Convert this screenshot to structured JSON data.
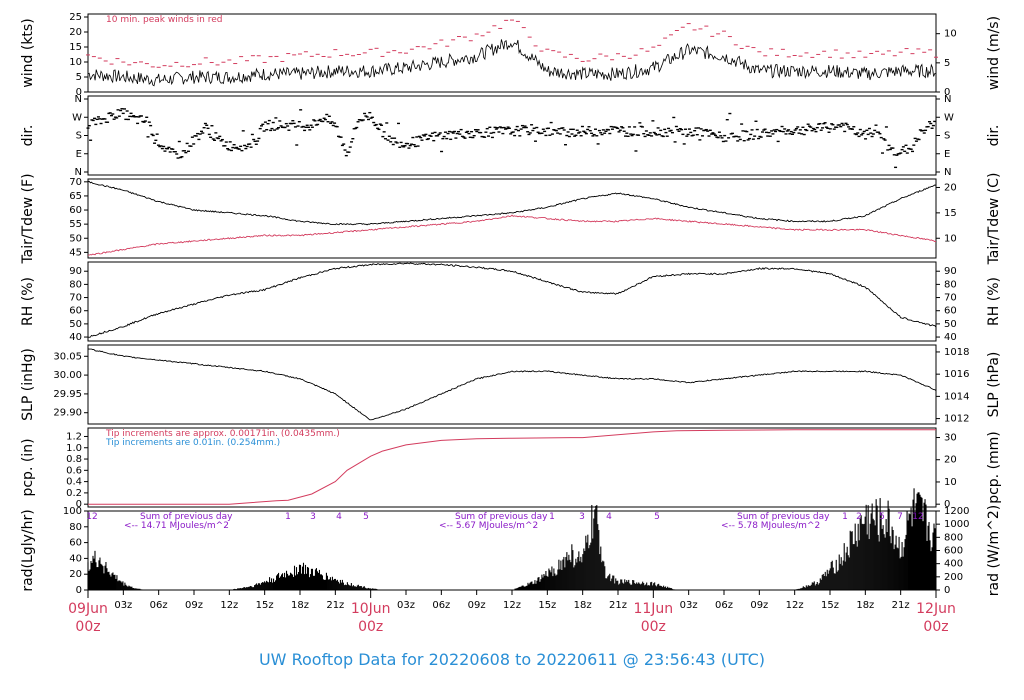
{
  "colors": {
    "red": "#d33c5e",
    "blue": "#2a8fd6",
    "purple": "#8a1ac7",
    "black": "#000000"
  },
  "footer": "UW Rooftop Data for 20220608  to  20220611 @ 23:56:43  (UTC)",
  "x_ticks": [
    "03z",
    "06z",
    "09z",
    "12z",
    "15z",
    "18z",
    "21z",
    "03z",
    "06z",
    "09z",
    "12z",
    "15z",
    "18z",
    "21z",
    "03z",
    "06z",
    "09z",
    "12z",
    "15z",
    "18z",
    "21z"
  ],
  "date_labels": [
    {
      "date": "09Jun",
      "time": "00z"
    },
    {
      "date": "10Jun",
      "time": "00z"
    },
    {
      "date": "11Jun",
      "time": "00z"
    },
    {
      "date": "12Jun",
      "time": "00z"
    }
  ],
  "chart_data": [
    {
      "type": "line",
      "ylabel": "wind (kts)",
      "ylabel_right": "wind (m/s)",
      "ylim": [
        0,
        26
      ],
      "yticks": [
        "0",
        "5",
        "10",
        "15",
        "20",
        "25"
      ],
      "right_ticks": [
        "0",
        "5",
        "10"
      ],
      "annotation": "10 min. peak winds in red",
      "x_hours": [
        0,
        3,
        6,
        9,
        12,
        15,
        18,
        21,
        24,
        27,
        30,
        33,
        36,
        39,
        42,
        45,
        48,
        51,
        54,
        57,
        60,
        63,
        66,
        69,
        72
      ],
      "series": [
        {
          "values": [
            6,
            5,
            4,
            5,
            5,
            6,
            6,
            7,
            7,
            8,
            10,
            12,
            17,
            7,
            6,
            6,
            8,
            14,
            12,
            7,
            7,
            7,
            6,
            7,
            7
          ]
        },
        {
          "name": "10 min. peak winds",
          "values": [
            12,
            10,
            9,
            10,
            10,
            11,
            12,
            13,
            13,
            14,
            16,
            19,
            24,
            13,
            11,
            12,
            14,
            22,
            19,
            13,
            13,
            13,
            12,
            13,
            13
          ]
        }
      ]
    },
    {
      "type": "scatter",
      "ylabel": "dir.",
      "ylabel_right": "dir.",
      "yticks": [
        "N",
        "E",
        "S",
        "W",
        "N"
      ],
      "x_hours": [
        0,
        1,
        2,
        3,
        4,
        5,
        6,
        7,
        8,
        9,
        10,
        11,
        12,
        13,
        14,
        15,
        16,
        17,
        18,
        19,
        20,
        21,
        22,
        23,
        24,
        25,
        26,
        27,
        28,
        29,
        30,
        31,
        32,
        33,
        34,
        35,
        36,
        37,
        38,
        39,
        40,
        41,
        42,
        43,
        44,
        45,
        46,
        47,
        48,
        49,
        50,
        51,
        52,
        53,
        54,
        55,
        56,
        57,
        58,
        59,
        60,
        61,
        62,
        63,
        64,
        65,
        66,
        67,
        68,
        69,
        70,
        71,
        72
      ],
      "values_deg": [
        240,
        250,
        280,
        290,
        260,
        250,
        150,
        90,
        90,
        160,
        220,
        160,
        130,
        130,
        130,
        230,
        230,
        230,
        230,
        230,
        270,
        230,
        90,
        260,
        280,
        200,
        150,
        140,
        150,
        170,
        180,
        185,
        190,
        195,
        195,
        200,
        200,
        205,
        210,
        200,
        195,
        200,
        200,
        200,
        210,
        205,
        200,
        200,
        200,
        200,
        200,
        195,
        200,
        180,
        170,
        175,
        180,
        190,
        195,
        200,
        205,
        210,
        215,
        220,
        230,
        200,
        180,
        210,
        110,
        100,
        120,
        220,
        230
      ]
    },
    {
      "type": "line",
      "ylabel": "Tair/Tdew (F)",
      "ylabel_right": "Tair/Tdew (C)",
      "ylim": [
        43,
        71
      ],
      "yticks": [
        "45",
        "50",
        "55",
        "60",
        "65",
        "70"
      ],
      "right_ticks": [
        "10",
        "15",
        "20"
      ],
      "x_hours": [
        0,
        3,
        6,
        9,
        12,
        15,
        18,
        21,
        24,
        27,
        30,
        33,
        36,
        39,
        42,
        45,
        48,
        51,
        54,
        57,
        60,
        63,
        66,
        69,
        72
      ],
      "series": [
        {
          "name": "Tair",
          "values": [
            70,
            67,
            63,
            60,
            59,
            58,
            56,
            55,
            55,
            56,
            57,
            58,
            59,
            61,
            64,
            66,
            64,
            61,
            59,
            57,
            56,
            56,
            58,
            64,
            69
          ]
        },
        {
          "name": "Tdew",
          "values": [
            44,
            46,
            48,
            49,
            50,
            51,
            51,
            52,
            53,
            54,
            55,
            56,
            58,
            57,
            56,
            56,
            57,
            56,
            55,
            54,
            53,
            53,
            53,
            51,
            49
          ]
        }
      ]
    },
    {
      "type": "line",
      "ylabel": "RH (%)",
      "ylabel_right": "RH (%)",
      "ylim": [
        37,
        97
      ],
      "yticks": [
        "40",
        "50",
        "60",
        "70",
        "80",
        "90"
      ],
      "right_ticks": [
        "40",
        "50",
        "60",
        "70",
        "80",
        "90"
      ],
      "x_hours": [
        0,
        3,
        6,
        9,
        12,
        15,
        18,
        21,
        24,
        27,
        30,
        33,
        36,
        39,
        42,
        45,
        48,
        51,
        54,
        57,
        60,
        63,
        66,
        69,
        72
      ],
      "series": [
        {
          "values": [
            40,
            48,
            58,
            65,
            72,
            76,
            85,
            92,
            95,
            96,
            95,
            93,
            90,
            82,
            74,
            73,
            86,
            88,
            88,
            92,
            92,
            88,
            78,
            55,
            48
          ]
        }
      ]
    },
    {
      "type": "line",
      "ylabel": "SLP (inHg)",
      "ylabel_right": "SLP (hPa)",
      "ylim": [
        29.87,
        30.08
      ],
      "yticks": [
        "29.90",
        "29.95",
        "30.00",
        "30.05"
      ],
      "right_ticks": [
        "1012",
        "1014",
        "1016",
        "1018"
      ],
      "x_hours": [
        0,
        3,
        6,
        9,
        12,
        15,
        18,
        21,
        24,
        27,
        30,
        33,
        36,
        39,
        42,
        45,
        48,
        51,
        54,
        57,
        60,
        63,
        66,
        69,
        72
      ],
      "series": [
        {
          "values": [
            30.07,
            30.05,
            30.04,
            30.03,
            30.02,
            30.01,
            29.99,
            29.95,
            29.88,
            29.91,
            29.95,
            29.99,
            30.01,
            30.01,
            30.0,
            29.99,
            29.99,
            29.98,
            29.99,
            30.0,
            30.01,
            30.01,
            30.01,
            30.0,
            29.96
          ]
        }
      ]
    },
    {
      "type": "line",
      "ylabel": "pcp. (in)",
      "ylabel_right": "pcp. (mm)",
      "ylim": [
        -0.05,
        1.35
      ],
      "yticks": [
        "0",
        "0.2",
        "0.4",
        "0.6",
        "0.8",
        "1.0",
        "1.2"
      ],
      "right_ticks": [
        "0",
        "10",
        "20",
        "30"
      ],
      "notes": [
        "Tip increments are approx. 0.00171in. (0.0435mm.)",
        "Tip increments are 0.01in. (0.254mm.)"
      ],
      "x_hours": [
        0,
        12,
        14,
        16,
        17,
        19,
        21,
        22,
        24,
        25,
        27,
        30,
        33,
        36,
        41,
        42,
        48,
        50,
        54,
        60,
        66,
        72
      ],
      "series": [
        {
          "values": [
            0,
            0,
            0.03,
            0.06,
            0.07,
            0.18,
            0.4,
            0.6,
            0.85,
            0.94,
            1.05,
            1.13,
            1.16,
            1.17,
            1.18,
            1.18,
            1.28,
            1.3,
            1.31,
            1.32,
            1.32,
            1.32
          ]
        }
      ]
    },
    {
      "type": "area",
      "ylabel": "rad(Lgly/hr)",
      "ylabel_right": "rad (W/m^2)",
      "ylim": [
        0,
        100
      ],
      "yticks": [
        "0",
        "20",
        "40",
        "60",
        "80",
        "100"
      ],
      "right_ticks": [
        "0",
        "200",
        "400",
        "600",
        "800",
        "1000",
        "1200"
      ],
      "daily_sums": [
        "Sum of previous day\n<-- 14.71 MJoules/m^2",
        "Sum of previous day\n<-- 5.67 MJoules/m^2",
        "Sum of previous day\n<-- 5.78 MJoules/m^2"
      ],
      "hour_marks": [
        "12",
        "1",
        "3",
        "4",
        "5",
        "1",
        "3",
        "4",
        "5",
        "1",
        "2",
        "5",
        "7",
        "12"
      ],
      "x_hours": [
        0,
        1,
        2,
        3,
        4,
        5,
        12,
        14,
        16,
        18,
        20,
        22,
        24,
        25,
        36,
        38,
        40,
        41,
        42,
        43,
        44,
        45,
        46,
        48,
        50,
        52,
        54,
        60,
        62,
        64,
        66,
        68,
        69,
        70,
        71,
        72
      ],
      "values": [
        35,
        38,
        20,
        8,
        2,
        0,
        0,
        5,
        15,
        28,
        18,
        8,
        2,
        0,
        0,
        10,
        30,
        45,
        35,
        95,
        20,
        10,
        10,
        8,
        0,
        0,
        0,
        0,
        10,
        40,
        90,
        85,
        50,
        100,
        90,
        60
      ]
    }
  ]
}
